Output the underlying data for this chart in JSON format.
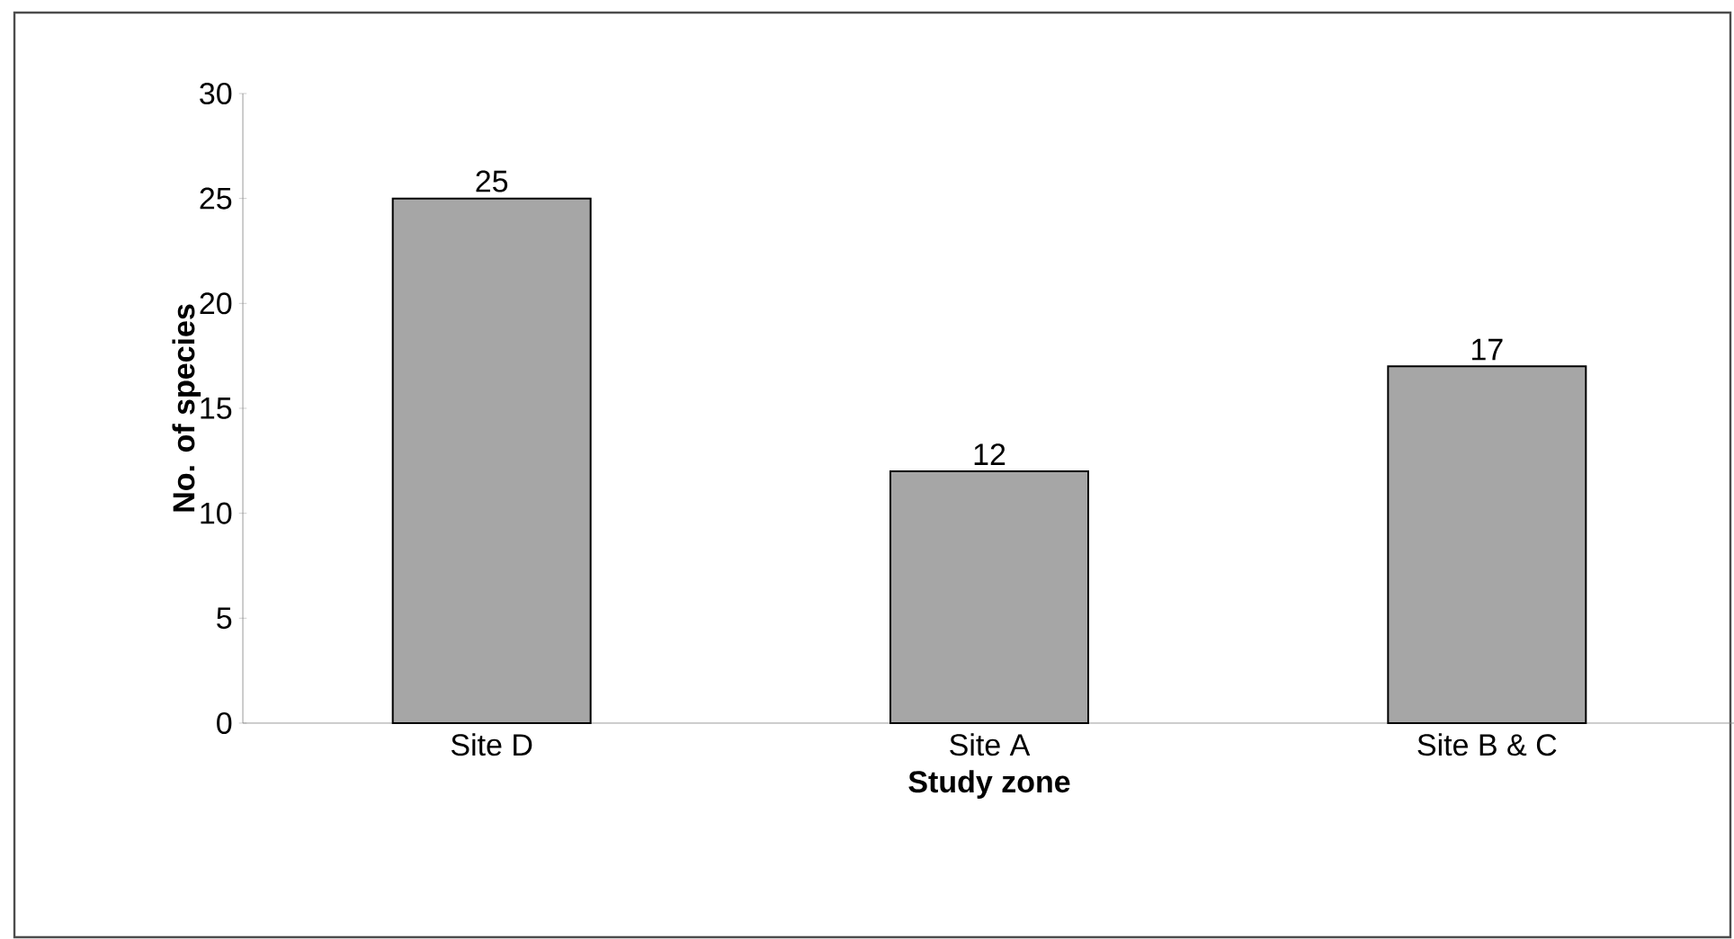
{
  "chart_data": {
    "type": "bar",
    "xlabel": "Study zone",
    "ylabel": "No. of species",
    "categories": [
      "Site D",
      "Site A",
      "Site B & C"
    ],
    "values": [
      25,
      12,
      17
    ],
    "color": "#a6a6a6",
    "ylim": [
      0,
      30
    ],
    "yticks": [
      0,
      5,
      10,
      15,
      20,
      25,
      30
    ],
    "data_labels": true,
    "grid": false
  }
}
